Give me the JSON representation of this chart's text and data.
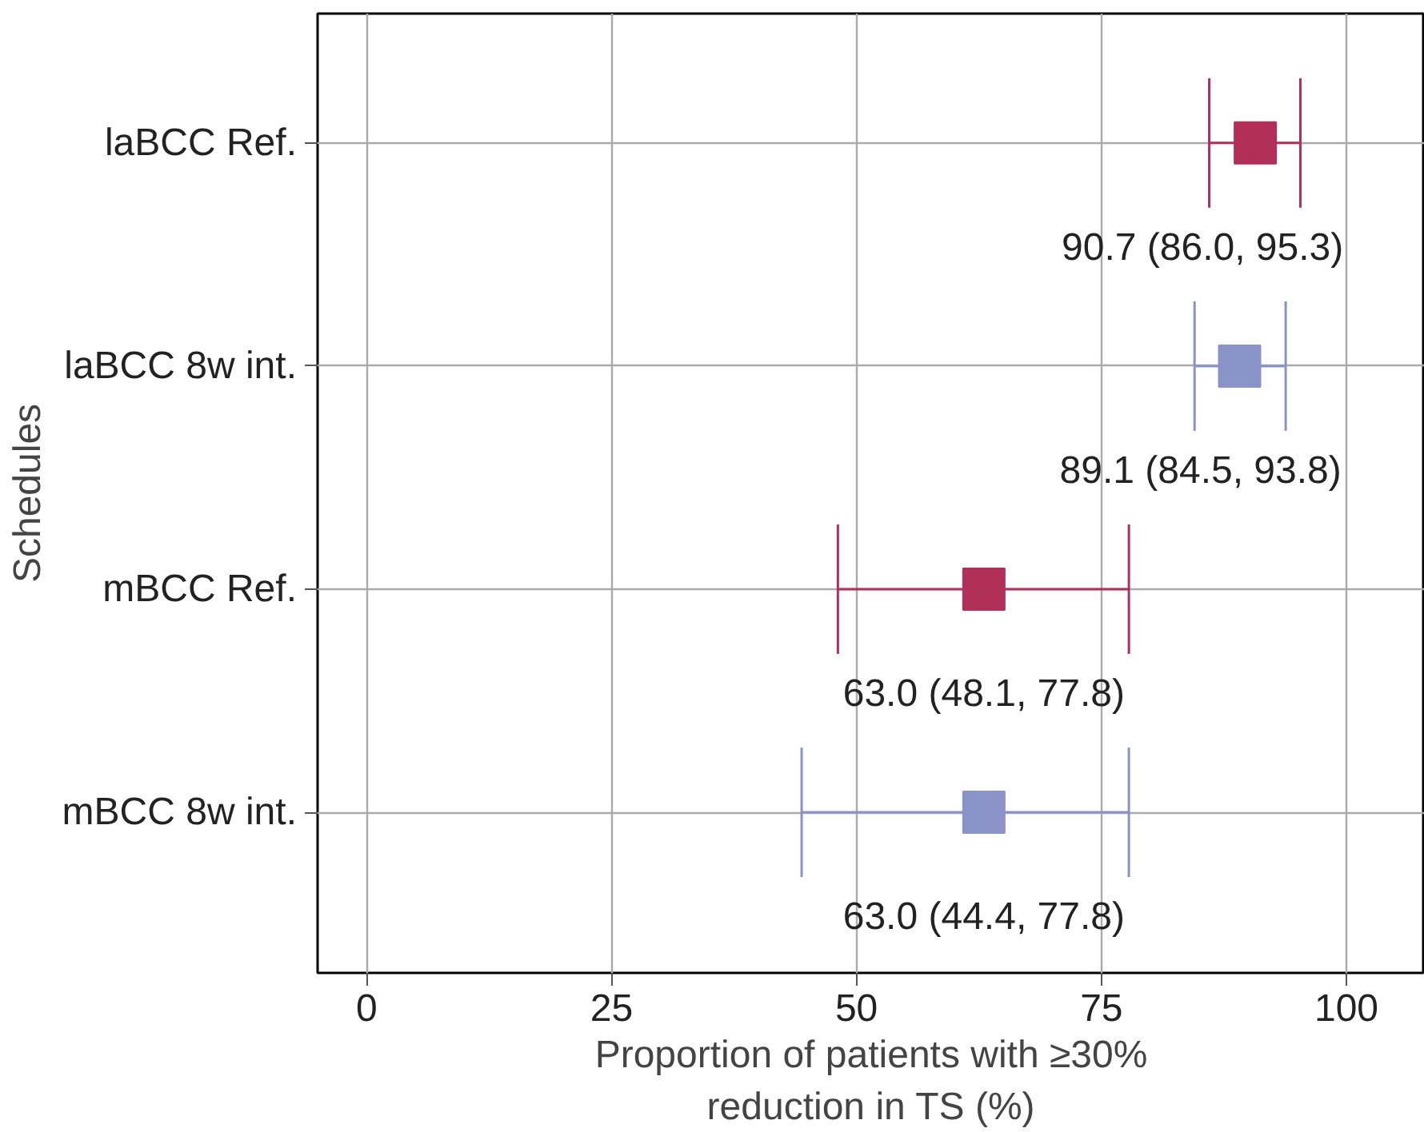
{
  "chart_data": {
    "type": "scatter",
    "orientation": "horizontal",
    "ylabel": "Schedules",
    "xlabel": "Proportion of patients with ≥30%\nreduction in TS (%)",
    "categories": [
      "laBCC Ref.",
      "laBCC 8w int.",
      "mBCC Ref.",
      "mBCC 8w int."
    ],
    "values": [
      90.7,
      89.1,
      63.0,
      63.0
    ],
    "errors": [
      [
        86.0,
        95.3
      ],
      [
        84.5,
        93.8
      ],
      [
        48.1,
        77.8
      ],
      [
        44.4,
        77.8
      ]
    ],
    "colors": [
      "#b0305a",
      "#8a93c8",
      "#b0305a",
      "#8a93c8"
    ],
    "value_labels": [
      "90.7 (86.0, 95.3)",
      "89.1 (84.5, 93.8)",
      "63.0 (48.1, 77.8)",
      "63.0 (44.4, 77.8)"
    ],
    "xlim": [
      -5,
      108
    ],
    "xticks": [
      0,
      25,
      50,
      75,
      100
    ],
    "grid": true,
    "marker": "square"
  }
}
